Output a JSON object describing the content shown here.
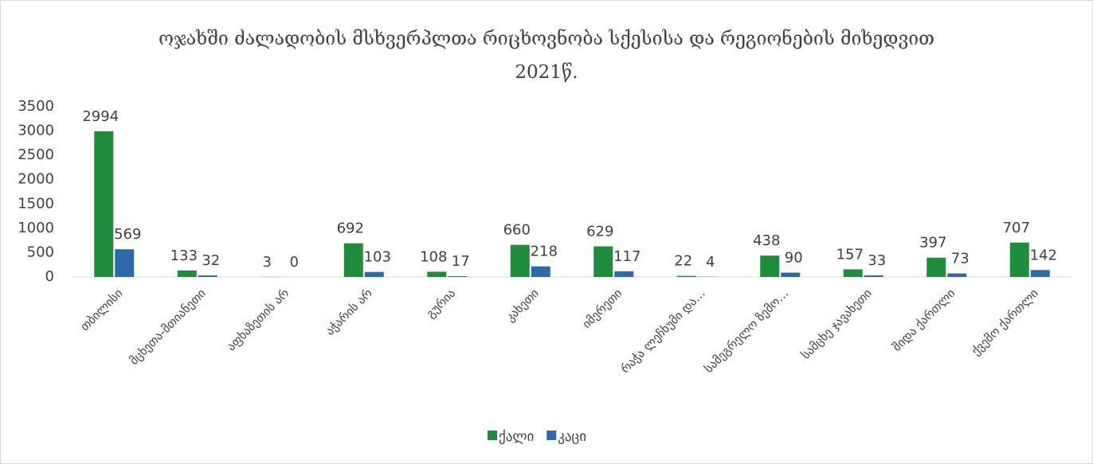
{
  "chart_data": {
    "type": "bar",
    "title": "ოჯახში ძალადობის მსხვერპლთა რიცხოვნობა სქესისა და რეგიონების მიხედვით 2021წ.",
    "categories": [
      "თბილისი",
      "მცხეთა-მთიანეთი",
      "აფხაზეთის არ",
      "აჭარის არ",
      "გურია",
      "კახეთი",
      "იმერეთი",
      "რაჭა ლეჩხუმი და…",
      "სამეგრელო ზემო…",
      "სამცხე ჯავახეთი",
      "შიდა ქართლი",
      "ქვემო ქართლი"
    ],
    "series": [
      {
        "name": "ქალი",
        "color": "#1e8c3a",
        "values": [
          2994,
          133,
          3,
          692,
          108,
          660,
          629,
          22,
          438,
          157,
          397,
          707
        ]
      },
      {
        "name": "კაცი",
        "color": "#2e6aa8",
        "values": [
          569,
          32,
          0,
          103,
          17,
          218,
          117,
          4,
          90,
          33,
          73,
          142
        ]
      }
    ],
    "ylim": [
      0,
      3500
    ],
    "yticks": [
      0,
      500,
      1000,
      1500,
      2000,
      2500,
      3000,
      3500
    ],
    "grid": false,
    "legend": "bottom"
  }
}
